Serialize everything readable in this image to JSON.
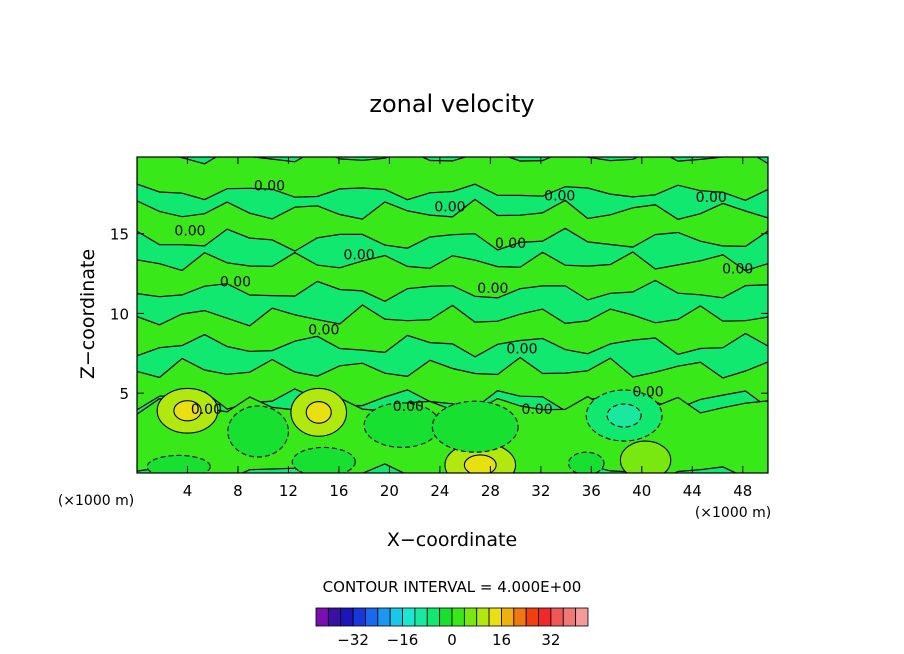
{
  "chart_data": {
    "type": "heatmap",
    "title": "zonal velocity",
    "xlabel": "X−coordinate",
    "ylabel": "Z−coordinate",
    "x_unit_left": "(×1000 m)",
    "x_unit_right": "(×1000 m)",
    "xlim": [
      0,
      50
    ],
    "ylim": [
      0,
      19.8
    ],
    "x_ticks": [
      "4",
      "8",
      "12",
      "16",
      "20",
      "24",
      "28",
      "32",
      "36",
      "40",
      "44",
      "48"
    ],
    "x_tick_values": [
      4,
      8,
      12,
      16,
      20,
      24,
      28,
      32,
      36,
      40,
      44,
      48
    ],
    "y_ticks": [
      "5",
      "10",
      "15"
    ],
    "y_tick_values": [
      5,
      10,
      15
    ],
    "contour_interval_text": "CONTOUR INTERVAL = 4.000E+00",
    "contour_labels": [
      {
        "text": "0.00",
        "x": 10.5,
        "y": 18.0
      },
      {
        "text": "0.00",
        "x": 33.5,
        "y": 17.4
      },
      {
        "text": "0.00",
        "x": 45.5,
        "y": 17.3
      },
      {
        "text": "0.00",
        "x": 24.8,
        "y": 16.7
      },
      {
        "text": "0.00",
        "x": 4.2,
        "y": 15.2
      },
      {
        "text": "0.00",
        "x": 29.6,
        "y": 14.4
      },
      {
        "text": "0.00",
        "x": 17.6,
        "y": 13.7
      },
      {
        "text": "0.00",
        "x": 47.6,
        "y": 12.8
      },
      {
        "text": "0.00",
        "x": 7.8,
        "y": 12.0
      },
      {
        "text": "0.00",
        "x": 28.2,
        "y": 11.6
      },
      {
        "text": "0.00",
        "x": 14.8,
        "y": 9.0
      },
      {
        "text": "0.00",
        "x": 30.5,
        "y": 7.8
      },
      {
        "text": "0.00",
        "x": 40.5,
        "y": 5.1
      },
      {
        "text": "0.00",
        "x": 5.5,
        "y": 4.0
      },
      {
        "text": "0.00",
        "x": 21.5,
        "y": 4.2
      },
      {
        "text": "0.00",
        "x": 31.7,
        "y": 4.0
      }
    ],
    "regions": [
      {
        "x": 4.0,
        "y": 3.9,
        "rx": 2.4,
        "ry": 1.4,
        "level": 8
      },
      {
        "x": 14.4,
        "y": 3.8,
        "rx": 2.2,
        "ry": 1.5,
        "level": 8
      },
      {
        "x": 27.2,
        "y": 0.5,
        "rx": 2.8,
        "ry": 1.4,
        "level": 8
      },
      {
        "x": 40.3,
        "y": 0.8,
        "rx": 2.0,
        "ry": 1.2,
        "level": 4
      },
      {
        "x": 9.6,
        "y": 2.6,
        "rx": 2.4,
        "ry": 1.6,
        "level": -4
      },
      {
        "x": 21.0,
        "y": 3.0,
        "rx": 3.0,
        "ry": 1.4,
        "level": -4
      },
      {
        "x": 26.8,
        "y": 2.9,
        "rx": 3.4,
        "ry": 1.6,
        "level": -4
      },
      {
        "x": 38.6,
        "y": 3.6,
        "rx": 3.0,
        "ry": 1.6,
        "level": -8
      },
      {
        "x": 14.8,
        "y": 0.7,
        "rx": 2.5,
        "ry": 0.9,
        "level": -4
      },
      {
        "x": 3.3,
        "y": 0.4,
        "rx": 2.5,
        "ry": 0.7,
        "level": -4
      },
      {
        "x": 35.6,
        "y": 0.6,
        "rx": 1.4,
        "ry": 0.7,
        "level": -4
      }
    ],
    "colorbar": {
      "colors": [
        "#7a0fb0",
        "#3a10a0",
        "#1c16b8",
        "#1638d8",
        "#1868f0",
        "#1c98f0",
        "#19c8e8",
        "#19e8d0",
        "#18e8a0",
        "#10e870",
        "#18e030",
        "#38e818",
        "#78e810",
        "#b0e810",
        "#e8e010",
        "#f0b010",
        "#f07810",
        "#f04010",
        "#f02828",
        "#f05858",
        "#f07878",
        "#f59a9a"
      ],
      "tick_labels": [
        "−32",
        "−16",
        "0",
        "16",
        "32"
      ],
      "tick_values": [
        -32,
        -16,
        0,
        16,
        32
      ],
      "range": [
        -44,
        44
      ]
    },
    "background_levels": {
      "base_level": 0,
      "base_color": "#10e870",
      "lighter_color": "#38e818",
      "lighter_color_2": "#78e810",
      "darker_color": "#18e8a0",
      "darker_color_2": "#19e8d0"
    },
    "grid": false
  }
}
